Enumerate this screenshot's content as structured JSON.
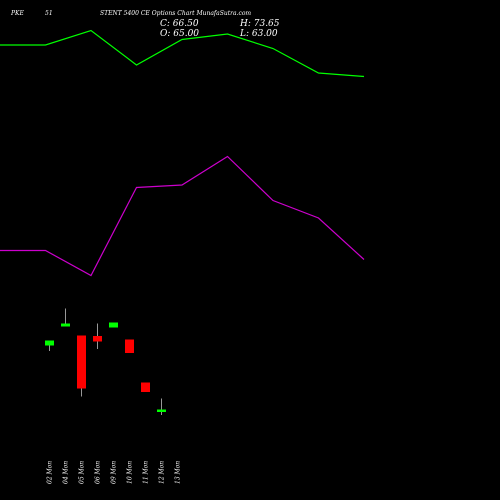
{
  "header": {
    "left": "PKE",
    "mid": "51",
    "title": "STENT 5400  CE Options  Chart MunafaSutra.com"
  },
  "ohlc": {
    "close": "C: 66.50",
    "high": "H: 73.65",
    "open": "O: 65.00",
    "low": "L: 63.00"
  },
  "colors": {
    "background": "#000000",
    "bull": "#00ff00",
    "bear": "#ff0000",
    "upper_band": "#00ff00",
    "lower_band": "#cc00cc",
    "wick": "#ffffff"
  },
  "chart_data": {
    "type": "candlestick",
    "x": [
      "02 Mon",
      "04 Mon",
      "05 Mon",
      "06 Mon",
      "09 Mon",
      "10 Mon",
      "11 Mon",
      "12 Mon",
      "13 Mon"
    ],
    "candles": [
      {
        "date": "02 Mon",
        "open": 154.5,
        "high": 154.5,
        "low": 149.0,
        "close": 159.5
      },
      {
        "date": "04 Mon",
        "open": 173.5,
        "high": 191.5,
        "low": 173.5,
        "close": 176.5
      },
      {
        "date": "05 Mon",
        "open": 164.5,
        "high": 164.5,
        "low": 103.5,
        "close": 111.5
      },
      {
        "date": "06 Mon",
        "open": 164.0,
        "high": 176.5,
        "low": 151.0,
        "close": 158.5
      },
      {
        "date": "09 Mon",
        "open": 172.5,
        "high": 172.5,
        "low": 172.5,
        "close": 177.5
      },
      {
        "date": "10 Mon",
        "open": 160.5,
        "high": 160.5,
        "low": 147.0,
        "close": 147.0
      },
      {
        "date": "11 Mon",
        "open": 117.5,
        "high": 117.5,
        "low": 108.0,
        "close": 108.0
      },
      {
        "date": "12 Mon",
        "open": 88.0,
        "high": 101.5,
        "low": 85.0,
        "close": 90.5
      },
      {
        "date": "13 Mon",
        "open": null,
        "high": null,
        "low": null,
        "close": null
      }
    ],
    "series": [
      {
        "values": [
          455.0,
          455.0,
          469.5,
          435.0,
          460.5,
          466.0,
          451.5,
          427.0,
          423.5
        ]
      },
      {
        "values": [
          249.5,
          249.5,
          224.5,
          312.5,
          315.0,
          343.5,
          299.5,
          282.0,
          240.5
        ]
      }
    ],
    "ylim": [
      0,
      500
    ],
    "grid": false,
    "legend": "none"
  }
}
